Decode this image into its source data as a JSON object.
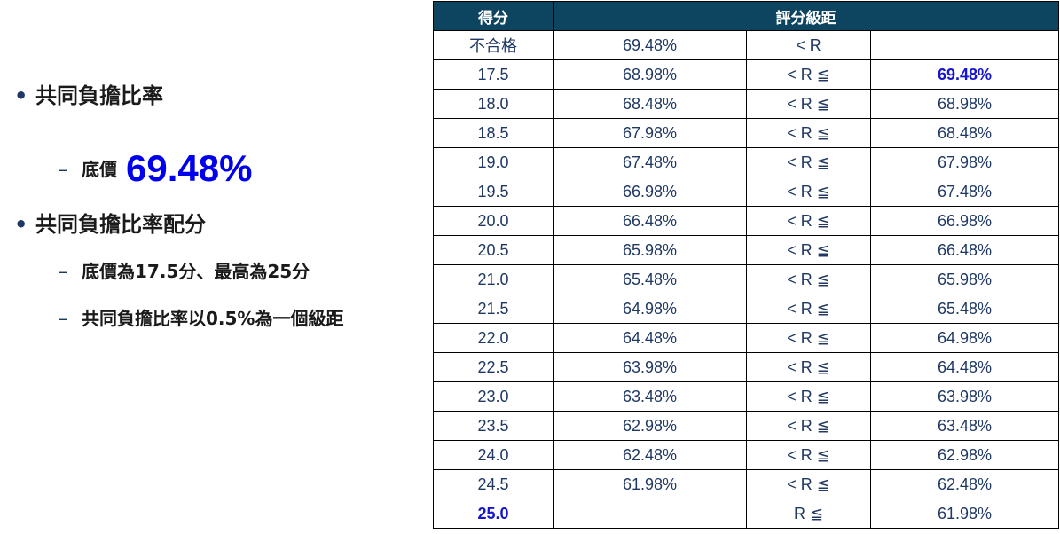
{
  "left": {
    "bullet1": "共同負擔比率",
    "sub1_label": "底價",
    "sub1_value": "69.48%",
    "bullet2": "共同負擔比率配分",
    "sub2a": "底價為17.5分、最高為25分",
    "sub2b": "共同負擔比率以0.5%為一個級距"
  },
  "table": {
    "header": [
      "得分",
      "評分級距"
    ],
    "rows": [
      {
        "score": "不合格",
        "low": "69.48%",
        "op": "< R",
        "high": ""
      },
      {
        "score": "17.5",
        "low": "68.98%",
        "op": "< R ≦",
        "high": "69.48%"
      },
      {
        "score": "18.0",
        "low": "68.48%",
        "op": "< R ≦",
        "high": "68.98%"
      },
      {
        "score": "18.5",
        "low": "67.98%",
        "op": "< R ≦",
        "high": "68.48%"
      },
      {
        "score": "19.0",
        "low": "67.48%",
        "op": "< R ≦",
        "high": "67.98%"
      },
      {
        "score": "19.5",
        "low": "66.98%",
        "op": "< R ≦",
        "high": "67.48%"
      },
      {
        "score": "20.0",
        "low": "66.48%",
        "op": "< R ≦",
        "high": "66.98%"
      },
      {
        "score": "20.5",
        "low": "65.98%",
        "op": "< R ≦",
        "high": "66.48%"
      },
      {
        "score": "21.0",
        "low": "65.48%",
        "op": "< R ≦",
        "high": "65.98%"
      },
      {
        "score": "21.5",
        "low": "64.98%",
        "op": "< R ≦",
        "high": "65.48%"
      },
      {
        "score": "22.0",
        "low": "64.48%",
        "op": "< R ≦",
        "high": "64.98%"
      },
      {
        "score": "22.5",
        "low": "63.98%",
        "op": "< R ≦",
        "high": "64.48%"
      },
      {
        "score": "23.0",
        "low": "63.48%",
        "op": "< R ≦",
        "high": "63.98%"
      },
      {
        "score": "23.5",
        "low": "62.98%",
        "op": "< R ≦",
        "high": "63.48%"
      },
      {
        "score": "24.0",
        "low": "62.48%",
        "op": "< R ≦",
        "high": "62.98%"
      },
      {
        "score": "24.5",
        "low": "61.98%",
        "op": "< R ≦",
        "high": "62.48%"
      },
      {
        "score": "25.0",
        "low": "",
        "op": "R ≦",
        "high": "61.98%"
      }
    ]
  },
  "colors": {
    "header_bg": "#0d4460",
    "highlight_blue": "#1515d0",
    "text_navy": "#1f3864"
  }
}
